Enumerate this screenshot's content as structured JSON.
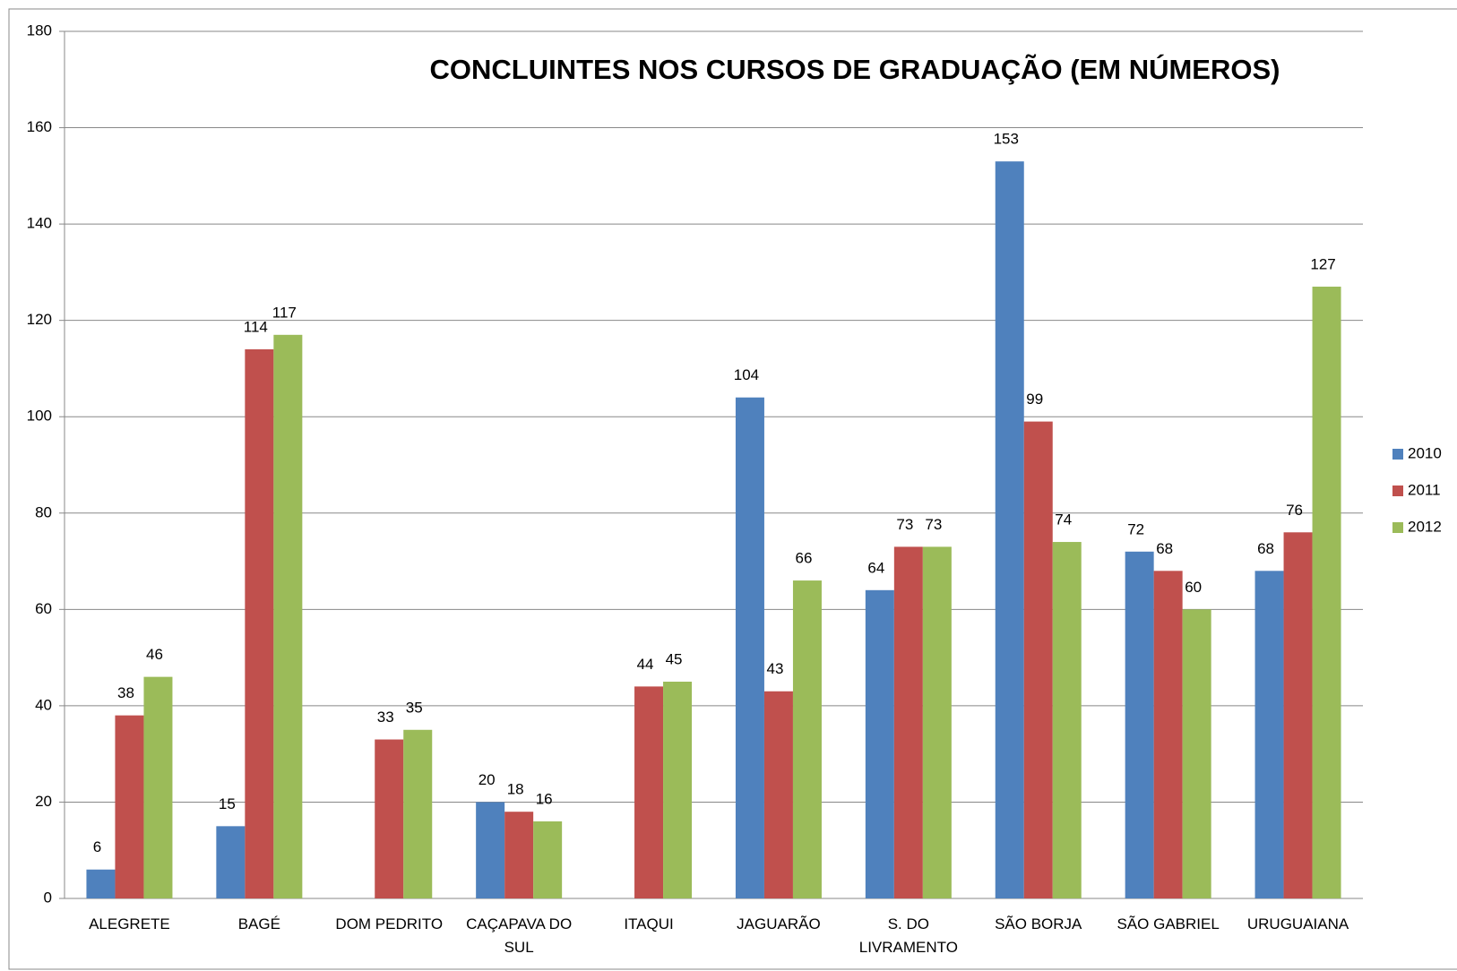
{
  "chart_data": {
    "type": "bar",
    "title": "CONCLUINTES NOS CURSOS DE GRADUAÇÃO (EM NÚMEROS)",
    "categories": [
      "ALEGRETE",
      "BAGÉ",
      "DOM PEDRITO",
      "CAÇAPAVA DO SUL",
      "ITAQUI",
      "JAGUARÃO",
      "S. DO LIVRAMENTO",
      "SÃO BORJA",
      "SÃO GABRIEL",
      "URUGUAIANA"
    ],
    "series": [
      {
        "name": "2010",
        "color": "#4f81bd",
        "values": [
          6,
          15,
          null,
          20,
          null,
          104,
          64,
          153,
          72,
          68
        ]
      },
      {
        "name": "2011",
        "color": "#c0504d",
        "values": [
          38,
          114,
          33,
          18,
          44,
          43,
          73,
          99,
          68,
          76
        ]
      },
      {
        "name": "2012",
        "color": "#9bbb59",
        "values": [
          46,
          117,
          35,
          16,
          45,
          66,
          73,
          74,
          60,
          127
        ]
      }
    ],
    "ylim": [
      0,
      180
    ],
    "yticks": [
      0,
      20,
      40,
      60,
      80,
      100,
      120,
      140,
      160,
      180
    ],
    "grid": true,
    "legend": "right"
  }
}
